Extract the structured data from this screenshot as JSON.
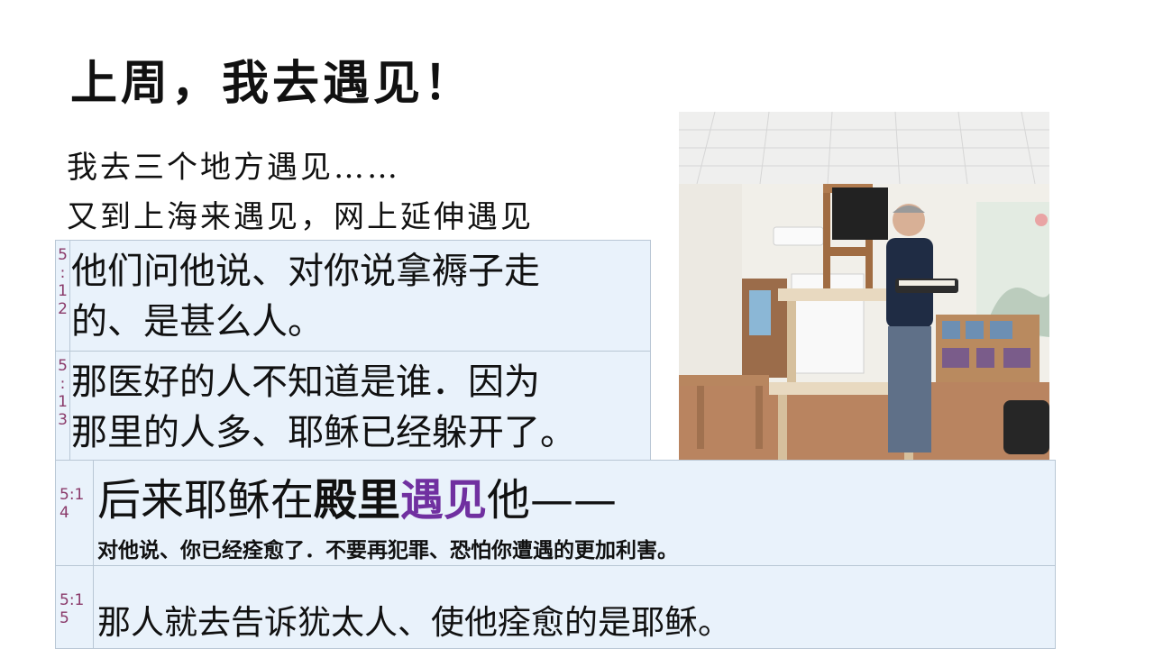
{
  "slide": {
    "title": "上周，我去遇见！",
    "subtitle_line1": "我去三个地方遇见……",
    "subtitle_line2": "又到上海来遇见，网上延伸遇见"
  },
  "verses": [
    {
      "number_chars": [
        "5",
        ":",
        "1",
        "2"
      ],
      "line1": "他们问他说、对你说拿褥子走",
      "line2": "的、是甚么人。"
    },
    {
      "number_chars": [
        "5",
        ":",
        "1",
        "3"
      ],
      "line1": "那医好的人不知道是谁．因为",
      "line2": "那里的人多、耶稣已经躲开了。"
    },
    {
      "number_lines": [
        "5:1",
        "4"
      ],
      "main_part1": "后来耶稣在",
      "main_part2": "殿里",
      "main_part3": "遇见",
      "main_part4": "他——",
      "detail": "对他说、你已经痊愈了．不要再犯罪、恐怕你遭遇的更加利害。"
    },
    {
      "number_lines": [
        "5:1",
        "5"
      ],
      "text": "那人就去告诉犹太人、使他痊愈的是耶稣。"
    }
  ],
  "colors": {
    "verse_bg": "#e9f2fb",
    "verse_border": "#b9c7d5",
    "verse_number": "#8a3a6a",
    "highlight": "#7030a0"
  }
}
